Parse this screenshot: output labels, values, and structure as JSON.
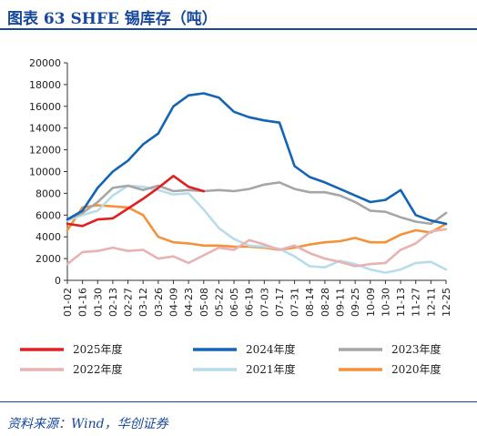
{
  "header": {
    "title": "图表 63    SHFE 锡库存（吨）"
  },
  "footer": {
    "source": "资料来源：Wind，华创证券"
  },
  "chart_data": {
    "type": "line",
    "title": "SHFE 锡库存（吨）",
    "xlabel": "",
    "ylabel": "",
    "ylim": [
      0,
      20000
    ],
    "yticks": [
      0,
      2000,
      4000,
      6000,
      8000,
      10000,
      12000,
      14000,
      16000,
      18000,
      20000
    ],
    "ytick_labels": [
      "0",
      "2000",
      "4000",
      "6000",
      "8000",
      "10000",
      "12000",
      "14000",
      "16000",
      "18000",
      "20000"
    ],
    "x_categories": [
      "01-02",
      "01-16",
      "01-30",
      "02-13",
      "02-27",
      "03-12",
      "03-26",
      "04-09",
      "04-23",
      "05-08",
      "05-22",
      "06-05",
      "06-19",
      "07-03",
      "07-17",
      "07-31",
      "08-14",
      "08-28",
      "09-11",
      "09-25",
      "10-09",
      "10-30",
      "11-13",
      "11-27",
      "12-11",
      "12-25"
    ],
    "grid": false,
    "legend_position": "bottom",
    "series": [
      {
        "name": "2025年度",
        "color": "#e02020",
        "values": [
          5200,
          5000,
          5600,
          5700,
          6600,
          7500,
          8500,
          9600,
          8600,
          8200,
          null,
          null,
          null,
          null,
          null,
          null,
          null,
          null,
          null,
          null,
          null,
          null,
          null,
          null,
          null,
          null
        ]
      },
      {
        "name": "2024年度",
        "color": "#1464b4",
        "values": [
          5600,
          6400,
          8500,
          10000,
          11000,
          12500,
          13500,
          16000,
          17000,
          17200,
          16800,
          15500,
          15000,
          14700,
          14500,
          10500,
          9500,
          9000,
          8400,
          7800,
          7200,
          7400,
          8300,
          6000,
          5500,
          5200
        ]
      },
      {
        "name": "2023年度",
        "color": "#a6a6a6",
        "values": [
          5600,
          6200,
          7200,
          8500,
          8700,
          8300,
          8700,
          8200,
          8300,
          8200,
          8300,
          8200,
          8400,
          8800,
          9000,
          8400,
          8100,
          8100,
          7800,
          7200,
          6400,
          6300,
          5800,
          5400,
          5200,
          6200
        ]
      },
      {
        "name": "2022年度",
        "color": "#e8b2b2",
        "values": [
          1500,
          2600,
          2700,
          3000,
          2700,
          2800,
          2000,
          2200,
          1600,
          2300,
          3000,
          2800,
          3700,
          3300,
          2800,
          3200,
          2500,
          2000,
          1700,
          1300,
          1500,
          1600,
          2800,
          3400,
          4500,
          4700
        ]
      },
      {
        "name": "2021年度",
        "color": "#b8dcea",
        "values": [
          5500,
          6000,
          6400,
          7800,
          8700,
          8600,
          8300,
          7900,
          8000,
          6500,
          4800,
          3800,
          3200,
          3100,
          2900,
          2200,
          1300,
          1200,
          1800,
          1500,
          1000,
          700,
          1000,
          1600,
          1700,
          1000
        ]
      },
      {
        "name": "2020年度",
        "color": "#f4913a",
        "values": [
          4600,
          6700,
          6900,
          6800,
          6700,
          6000,
          4000,
          3500,
          3400,
          3200,
          3200,
          3100,
          3100,
          3000,
          2800,
          3000,
          3300,
          3500,
          3600,
          3900,
          3500,
          3500,
          4200,
          4600,
          4400,
          5200
        ]
      }
    ]
  }
}
